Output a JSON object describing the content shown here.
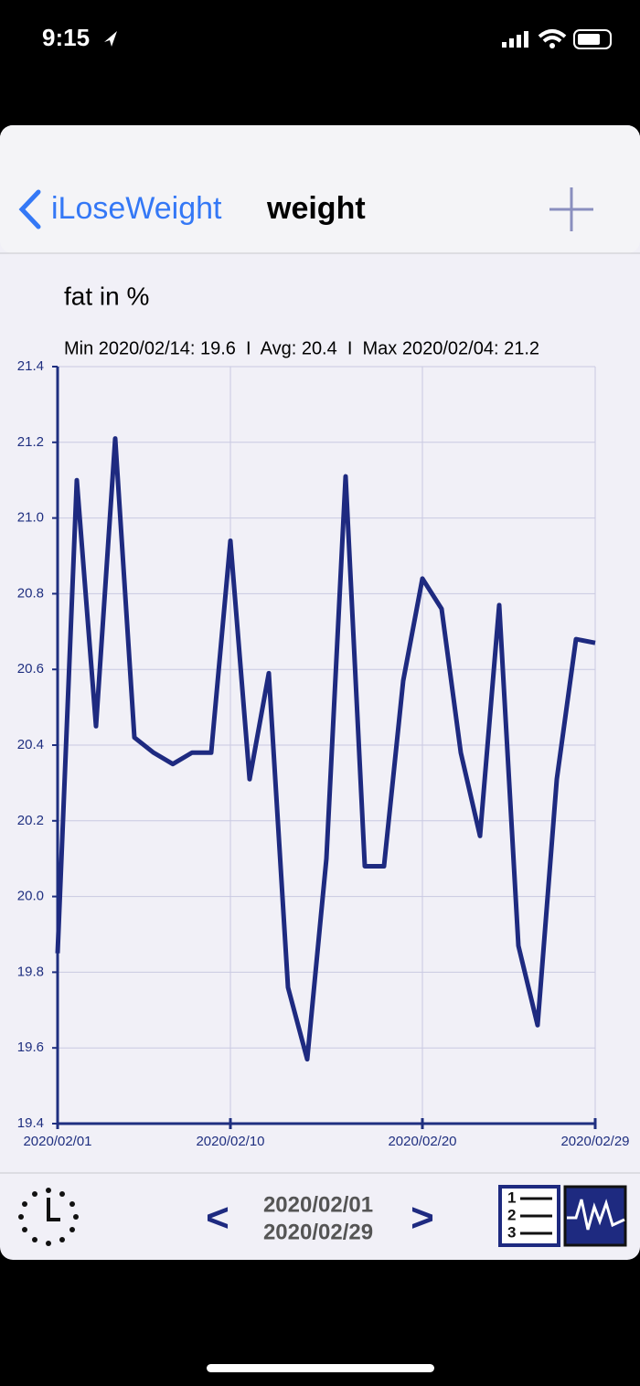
{
  "status_bar": {
    "time": "9:15"
  },
  "nav": {
    "back": "iLoseWeight",
    "title": "weight"
  },
  "chart_data": {
    "type": "line",
    "title": "fat in %",
    "subtitle": "Min 2020/02/14: 19.6  I  Avg: 20.4  I  Max 2020/02/04: 21.2",
    "x": [
      "2020/02/01",
      "2020/02/02",
      "2020/02/03",
      "2020/02/04",
      "2020/02/05",
      "2020/02/06",
      "2020/02/07",
      "2020/02/08",
      "2020/02/09",
      "2020/02/10",
      "2020/02/11",
      "2020/02/12",
      "2020/02/13",
      "2020/02/14",
      "2020/02/15",
      "2020/02/16",
      "2020/02/17",
      "2020/02/18",
      "2020/02/19",
      "2020/02/20",
      "2020/02/21",
      "2020/02/22",
      "2020/02/23",
      "2020/02/24",
      "2020/02/25",
      "2020/02/26",
      "2020/02/27",
      "2020/02/28",
      "2020/02/29"
    ],
    "series": [
      {
        "color": "#1e2a80",
        "values": [
          19.85,
          21.1,
          20.45,
          21.21,
          20.42,
          20.38,
          20.35,
          20.38,
          20.38,
          20.94,
          20.31,
          20.59,
          19.76,
          19.57,
          20.1,
          21.11,
          20.08,
          20.08,
          20.57,
          20.84,
          20.76,
          20.38,
          20.16,
          20.77,
          19.87,
          19.66,
          20.31,
          20.68,
          20.67
        ]
      }
    ],
    "xlim": [
      "2020/02/01",
      "2020/02/29"
    ],
    "xticks": [
      "2020/02/01",
      "2020/02/10",
      "2020/02/20",
      "2020/02/29"
    ],
    "ylim": [
      19.4,
      21.4
    ],
    "yticks": [
      19.4,
      19.6,
      19.8,
      {
        "value": 20,
        "label": "20.0"
      },
      20.2,
      20.4,
      20.6,
      20.8,
      {
        "value": 21,
        "label": "21.0"
      },
      21.2,
      21.4
    ],
    "grid": true
  },
  "footer": {
    "prev": "<",
    "start": "2020/02/01",
    "end": "2020/02/29",
    "next": ">"
  }
}
